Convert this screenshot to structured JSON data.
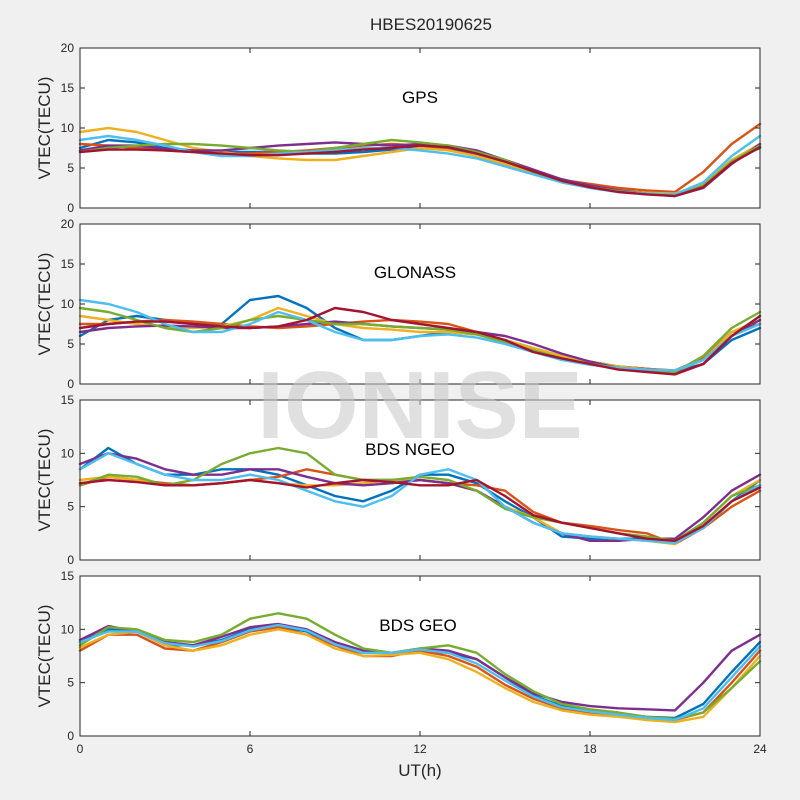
{
  "figure": {
    "title": "HBES20190625",
    "watermark": "IONISE",
    "xlabel": "UT(h)",
    "colors": [
      "#0072BD",
      "#D95319",
      "#EDB120",
      "#7E2F8E",
      "#77AC30",
      "#4DBEEE",
      "#A2142F"
    ]
  },
  "chart_data": [
    {
      "type": "line",
      "label": "GPS",
      "ylabel": "VTEC(TECU)",
      "xlim": [
        0,
        24
      ],
      "ylim": [
        0,
        20
      ],
      "xticks": [
        0,
        6,
        12,
        18,
        24
      ],
      "yticks": [
        0,
        5,
        10,
        15,
        20
      ],
      "x": [
        0,
        1,
        2,
        3,
        4,
        5,
        6,
        7,
        8,
        9,
        10,
        11,
        12,
        13,
        14,
        15,
        16,
        17,
        18,
        19,
        20,
        21,
        22,
        23,
        24
      ],
      "series": [
        {
          "values": [
            7.5,
            8.5,
            8.2,
            7.5,
            7.2,
            7.0,
            7.0,
            7.0,
            6.8,
            6.8,
            7.0,
            7.3,
            7.5,
            7.3,
            6.5,
            5.5,
            4.5,
            3.5,
            2.8,
            2.2,
            1.9,
            1.6,
            3.0,
            6.0,
            7.5
          ]
        },
        {
          "values": [
            8.0,
            7.8,
            7.5,
            7.2,
            7.0,
            6.8,
            6.8,
            7.0,
            7.2,
            7.5,
            7.8,
            8.0,
            7.8,
            7.5,
            7.0,
            6.0,
            4.8,
            3.5,
            3.0,
            2.5,
            2.2,
            2.0,
            4.5,
            8.0,
            10.5
          ]
        },
        {
          "values": [
            9.5,
            10.0,
            9.5,
            8.5,
            7.5,
            7.0,
            6.5,
            6.2,
            6.0,
            6.0,
            6.5,
            7.0,
            7.5,
            7.2,
            6.5,
            5.5,
            4.3,
            3.2,
            2.6,
            2.2,
            1.9,
            1.8,
            3.0,
            6.0,
            8.0
          ]
        },
        {
          "values": [
            7.2,
            7.8,
            7.8,
            7.4,
            7.2,
            7.2,
            7.5,
            7.8,
            8.0,
            8.2,
            8.0,
            7.8,
            8.0,
            7.8,
            7.2,
            6.0,
            4.8,
            3.6,
            2.8,
            2.2,
            1.8,
            1.5,
            2.5,
            5.5,
            8.0
          ]
        },
        {
          "values": [
            7.0,
            7.5,
            7.8,
            8.0,
            8.0,
            7.8,
            7.5,
            7.2,
            7.0,
            7.5,
            8.0,
            8.5,
            8.2,
            7.8,
            7.0,
            6.0,
            4.5,
            3.4,
            2.6,
            2.1,
            1.8,
            1.5,
            2.8,
            5.8,
            7.8
          ]
        },
        {
          "values": [
            8.5,
            9.0,
            8.5,
            7.8,
            7.0,
            6.5,
            6.5,
            6.8,
            7.0,
            7.2,
            7.5,
            7.5,
            7.2,
            6.8,
            6.2,
            5.2,
            4.2,
            3.2,
            2.5,
            2.0,
            1.8,
            1.7,
            3.2,
            6.5,
            9.0
          ]
        },
        {
          "values": [
            7.0,
            7.3,
            7.3,
            7.2,
            7.0,
            6.8,
            6.6,
            6.6,
            6.8,
            7.0,
            7.3,
            7.5,
            7.8,
            7.6,
            6.8,
            5.8,
            4.6,
            3.4,
            2.6,
            2.0,
            1.7,
            1.5,
            2.6,
            5.6,
            7.6
          ]
        }
      ]
    },
    {
      "type": "line",
      "label": "GLONASS",
      "ylabel": "VTEC(TECU)",
      "xlim": [
        0,
        24
      ],
      "ylim": [
        0,
        20
      ],
      "xticks": [
        0,
        6,
        12,
        18,
        24
      ],
      "yticks": [
        0,
        5,
        10,
        15,
        20
      ],
      "x": [
        0,
        1,
        2,
        3,
        4,
        5,
        6,
        7,
        8,
        9,
        10,
        11,
        12,
        13,
        14,
        15,
        16,
        17,
        18,
        19,
        20,
        21,
        22,
        23,
        24
      ],
      "series": [
        {
          "values": [
            6.0,
            8.0,
            8.5,
            8.0,
            7.5,
            7.5,
            10.5,
            11.0,
            9.5,
            7.0,
            5.5,
            5.5,
            6.0,
            6.5,
            6.2,
            5.5,
            4.5,
            3.5,
            2.8,
            2.2,
            1.9,
            1.6,
            2.5,
            5.5,
            7.0
          ]
        },
        {
          "values": [
            7.5,
            7.5,
            7.8,
            8.0,
            7.8,
            7.5,
            7.2,
            7.0,
            7.2,
            7.5,
            7.8,
            8.0,
            7.8,
            7.5,
            6.5,
            5.2,
            4.0,
            3.2,
            2.6,
            2.2,
            1.9,
            1.7,
            3.2,
            6.5,
            7.5
          ]
        },
        {
          "values": [
            8.5,
            8.0,
            7.5,
            7.2,
            7.0,
            7.2,
            8.0,
            9.5,
            8.5,
            7.5,
            7.0,
            6.8,
            6.5,
            6.5,
            6.2,
            5.5,
            4.5,
            3.5,
            2.8,
            2.2,
            1.8,
            1.6,
            3.0,
            6.5,
            8.0
          ]
        },
        {
          "values": [
            6.5,
            7.0,
            7.2,
            7.3,
            7.2,
            7.0,
            7.0,
            7.2,
            7.5,
            7.8,
            7.5,
            7.2,
            7.0,
            6.8,
            6.5,
            6.0,
            5.0,
            3.8,
            2.8,
            2.0,
            1.6,
            1.3,
            2.5,
            6.0,
            8.0
          ]
        },
        {
          "values": [
            9.5,
            9.0,
            8.0,
            7.0,
            6.5,
            7.0,
            8.0,
            8.5,
            8.0,
            7.5,
            7.5,
            7.2,
            7.0,
            6.8,
            6.2,
            5.2,
            4.2,
            3.2,
            2.5,
            2.0,
            1.7,
            1.5,
            3.5,
            7.0,
            9.0
          ]
        },
        {
          "values": [
            10.5,
            10.0,
            9.0,
            7.5,
            6.5,
            6.5,
            7.5,
            9.0,
            8.0,
            6.5,
            5.5,
            5.5,
            6.0,
            6.2,
            5.8,
            5.0,
            4.0,
            3.0,
            2.4,
            2.0,
            1.8,
            1.7,
            3.0,
            6.0,
            7.5
          ]
        },
        {
          "values": [
            7.0,
            7.5,
            7.8,
            7.8,
            7.5,
            7.2,
            7.0,
            7.2,
            8.0,
            9.5,
            9.0,
            8.0,
            7.5,
            7.0,
            6.5,
            5.5,
            4.0,
            3.2,
            2.5,
            1.8,
            1.5,
            1.2,
            2.5,
            6.0,
            8.5
          ]
        }
      ]
    },
    {
      "type": "line",
      "label": "BDS NGEO",
      "ylabel": "VTEC(TECU)",
      "xlim": [
        0,
        24
      ],
      "ylim": [
        0,
        15
      ],
      "xticks": [
        0,
        6,
        12,
        18,
        24
      ],
      "yticks": [
        0,
        5,
        10,
        15
      ],
      "x": [
        0,
        1,
        2,
        3,
        4,
        5,
        6,
        7,
        8,
        9,
        10,
        11,
        12,
        13,
        14,
        15,
        16,
        17,
        18,
        19,
        20,
        21,
        22,
        23,
        24
      ],
      "series": [
        {
          "values": [
            8.5,
            10.5,
            9.0,
            8.0,
            8.0,
            8.5,
            8.5,
            8.0,
            7.0,
            6.0,
            5.5,
            6.5,
            8.0,
            8.0,
            7.2,
            5.5,
            4.0,
            2.2,
            2.0,
            2.0,
            2.0,
            1.8,
            3.0,
            5.5,
            7.5
          ]
        },
        {
          "values": [
            7.0,
            7.8,
            7.5,
            7.2,
            7.0,
            7.2,
            7.5,
            7.8,
            8.5,
            8.0,
            7.5,
            7.5,
            7.5,
            7.2,
            7.0,
            6.5,
            4.5,
            3.5,
            3.2,
            2.8,
            2.5,
            1.5,
            3.0,
            5.0,
            6.5
          ]
        },
        {
          "values": [
            7.5,
            7.8,
            7.5,
            7.0,
            7.0,
            7.2,
            7.5,
            7.2,
            7.0,
            7.0,
            7.2,
            7.5,
            7.5,
            7.2,
            6.5,
            5.0,
            4.0,
            2.5,
            2.2,
            2.0,
            1.8,
            1.5,
            3.5,
            6.0,
            7.5
          ]
        },
        {
          "values": [
            9.0,
            10.0,
            9.5,
            8.5,
            8.0,
            8.0,
            8.5,
            8.5,
            7.8,
            7.2,
            7.0,
            7.2,
            7.5,
            7.2,
            6.5,
            5.0,
            3.5,
            2.5,
            1.8,
            1.8,
            2.0,
            2.0,
            4.0,
            6.5,
            8.0
          ]
        },
        {
          "values": [
            7.0,
            8.0,
            7.8,
            7.0,
            7.5,
            9.0,
            10.0,
            10.5,
            10.0,
            8.0,
            7.5,
            7.5,
            7.8,
            7.5,
            6.5,
            4.8,
            4.0,
            3.5,
            3.0,
            2.5,
            2.2,
            1.8,
            3.5,
            6.0,
            7.0
          ]
        },
        {
          "values": [
            8.5,
            10.0,
            9.0,
            8.0,
            7.5,
            7.5,
            8.0,
            7.5,
            6.5,
            5.5,
            5.0,
            6.0,
            8.0,
            8.5,
            7.5,
            5.0,
            3.5,
            2.5,
            2.2,
            2.0,
            1.8,
            1.6,
            3.0,
            5.5,
            7.0
          ]
        },
        {
          "values": [
            7.2,
            7.5,
            7.3,
            7.0,
            7.0,
            7.2,
            7.5,
            7.2,
            6.8,
            7.2,
            7.5,
            7.3,
            7.0,
            7.0,
            7.5,
            6.0,
            4.2,
            3.5,
            3.0,
            2.5,
            2.0,
            1.8,
            3.2,
            5.5,
            6.8
          ]
        }
      ]
    },
    {
      "type": "line",
      "label": "BDS GEO",
      "ylabel": "VTEC(TECU)",
      "xlim": [
        0,
        24
      ],
      "ylim": [
        0,
        15
      ],
      "xticks": [
        0,
        6,
        12,
        18,
        24
      ],
      "yticks": [
        0,
        5,
        10,
        15
      ],
      "x": [
        0,
        1,
        2,
        3,
        4,
        5,
        6,
        7,
        8,
        9,
        10,
        11,
        12,
        13,
        14,
        15,
        16,
        17,
        18,
        19,
        20,
        21,
        22,
        23,
        24
      ],
      "series": [
        {
          "values": [
            8.8,
            10.0,
            9.8,
            8.5,
            8.5,
            9.0,
            10.0,
            10.3,
            9.8,
            8.5,
            7.8,
            7.8,
            8.0,
            7.8,
            7.2,
            5.5,
            3.8,
            2.8,
            2.4,
            2.1,
            1.8,
            1.7,
            3.0,
            6.0,
            8.8
          ]
        },
        {
          "values": [
            8.0,
            9.5,
            9.5,
            8.2,
            8.0,
            8.8,
            9.8,
            10.2,
            9.5,
            8.5,
            7.5,
            7.5,
            8.0,
            7.5,
            6.5,
            4.8,
            3.5,
            2.6,
            2.2,
            1.9,
            1.6,
            1.5,
            2.2,
            5.0,
            8.0
          ]
        },
        {
          "values": [
            8.3,
            9.5,
            9.8,
            8.5,
            8.0,
            8.5,
            9.5,
            10.0,
            9.5,
            8.2,
            7.5,
            7.6,
            7.8,
            7.2,
            6.0,
            4.5,
            3.2,
            2.4,
            2.0,
            1.8,
            1.5,
            1.3,
            1.8,
            4.5,
            7.5
          ]
        },
        {
          "values": [
            9.0,
            10.3,
            9.8,
            8.8,
            8.5,
            9.3,
            10.2,
            10.5,
            10.0,
            8.8,
            8.0,
            7.8,
            8.2,
            8.0,
            7.2,
            5.5,
            4.0,
            3.2,
            2.8,
            2.6,
            2.5,
            2.4,
            5.0,
            8.0,
            9.5
          ]
        },
        {
          "values": [
            8.5,
            10.2,
            10.0,
            9.0,
            8.8,
            9.5,
            11.0,
            11.5,
            11.0,
            9.5,
            8.2,
            7.8,
            8.2,
            8.5,
            7.8,
            5.8,
            4.2,
            3.0,
            2.5,
            2.2,
            1.8,
            1.6,
            2.2,
            4.5,
            7.0
          ]
        },
        {
          "values": [
            8.8,
            9.8,
            9.8,
            8.7,
            8.4,
            8.9,
            9.9,
            10.4,
            9.9,
            8.6,
            7.8,
            7.8,
            8.1,
            7.8,
            6.8,
            5.2,
            3.7,
            2.7,
            2.3,
            2.0,
            1.7,
            1.5,
            2.6,
            5.5,
            8.4
          ]
        }
      ]
    }
  ]
}
